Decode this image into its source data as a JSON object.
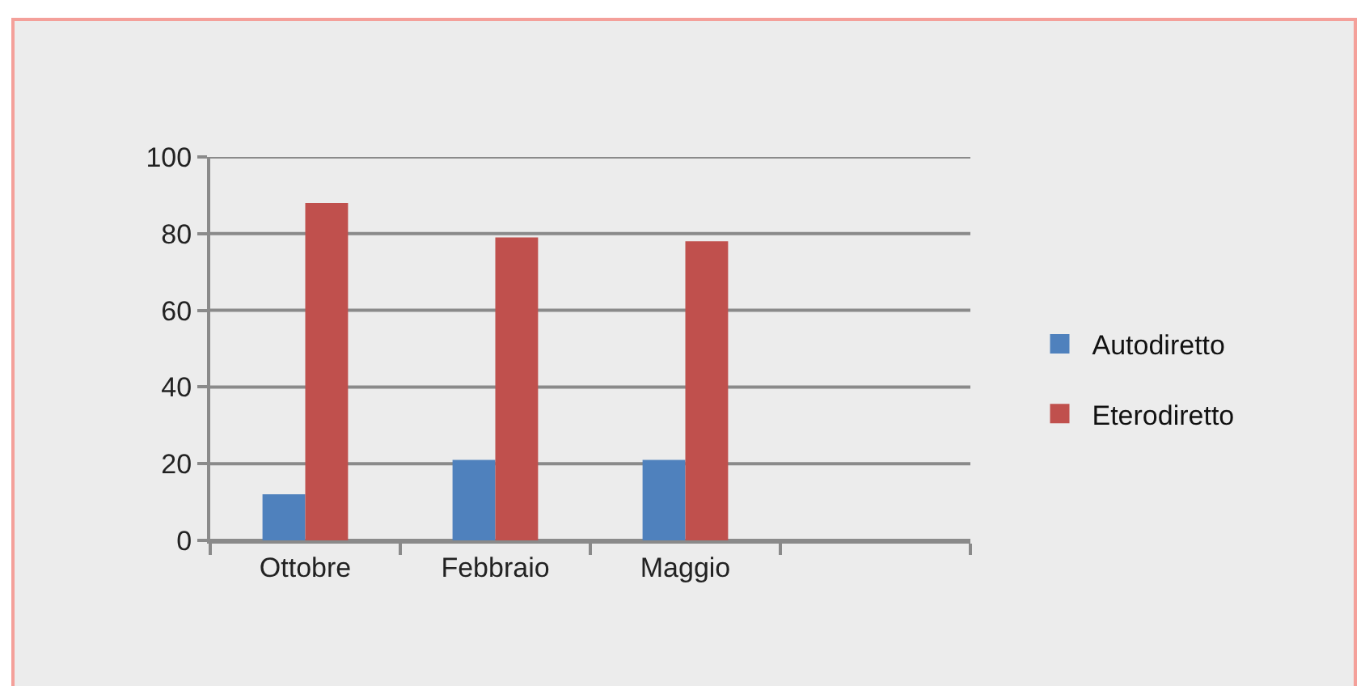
{
  "chart_data": {
    "type": "bar",
    "categories": [
      "Ottobre",
      "Febbraio",
      "Maggio",
      null
    ],
    "series": [
      {
        "name": "Autodiretto",
        "color": "#4f81bd",
        "values": [
          12,
          21,
          21,
          null
        ]
      },
      {
        "name": "Eterodiretto",
        "color": "#c0504d",
        "values": [
          88,
          79,
          78,
          null
        ]
      }
    ],
    "ylim": [
      0,
      100
    ],
    "yticks": [
      0,
      20,
      40,
      60,
      80,
      100
    ],
    "grid": "y",
    "legend": "right"
  }
}
